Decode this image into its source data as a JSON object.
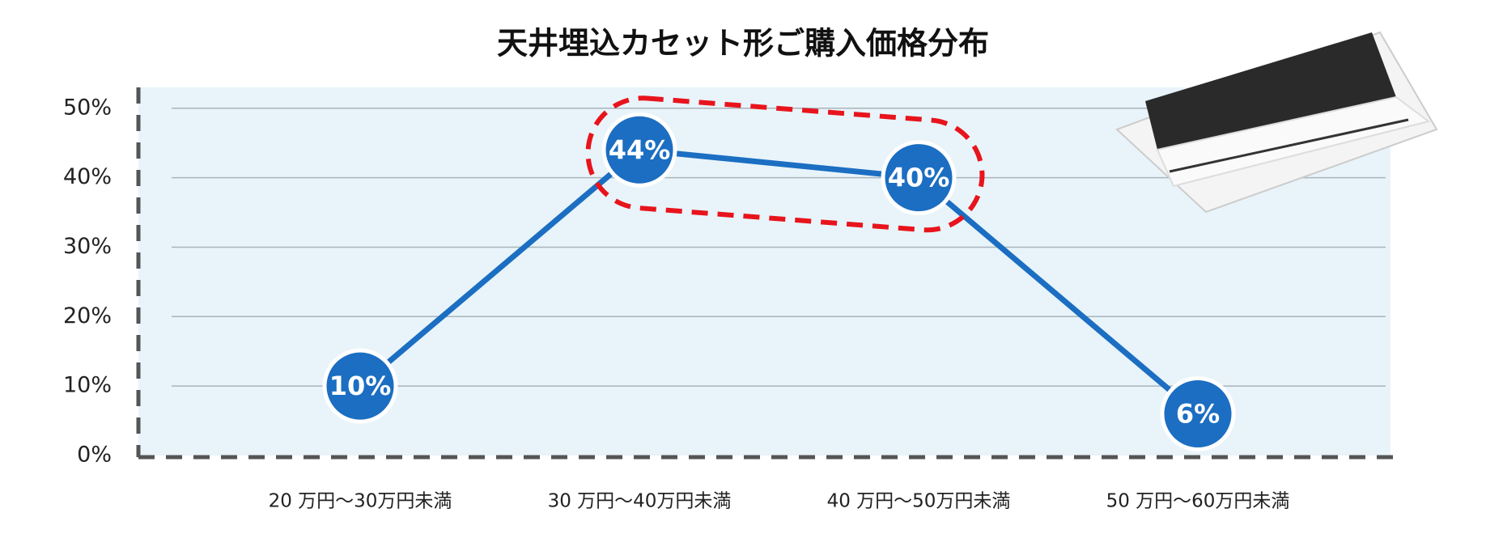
{
  "chart_data": {
    "type": "line",
    "title": "天井埋込カセット形ご購入価格分布",
    "categories": [
      "20 万円〜30万円未満",
      "30 万円〜40万円未満",
      "40 万円〜50万円未満",
      "50 万円〜60万円未満"
    ],
    "values": [
      10,
      44,
      40,
      6
    ],
    "value_labels": [
      "10%",
      "44%",
      "40%",
      "6%"
    ],
    "color": "#1b6ec2",
    "ylim": [
      0,
      53
    ],
    "yticks": [
      {
        "value": 0,
        "label": "0%"
      },
      {
        "value": 10,
        "label": "10%"
      },
      {
        "value": 20,
        "label": "20%"
      },
      {
        "value": 30,
        "label": "30%"
      },
      {
        "value": 40,
        "label": "40%"
      },
      {
        "value": 50,
        "label": "50%"
      }
    ],
    "grid": true
  }
}
